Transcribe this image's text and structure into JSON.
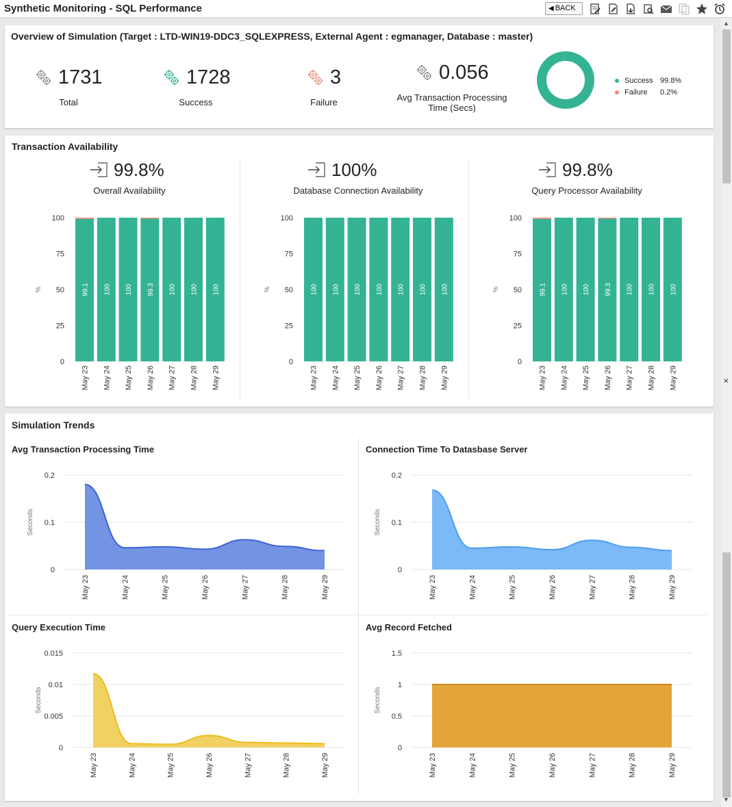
{
  "app": {
    "title": "Synthetic Monitoring - SQL Performance",
    "back_label": "BACK",
    "toolbar_icons": [
      "edit-report-icon",
      "edit-doc-icon",
      "pdf-export-icon",
      "print-preview-icon",
      "mail-icon",
      "copy-icon",
      "favorite-star-icon",
      "alarm-icon"
    ]
  },
  "overview": {
    "title": "Overview of Simulation (Target : LTD-WIN19-DDC3_SQLEXPRESS, External Agent : egmanager, Database : master)",
    "stats": [
      {
        "value": "1731",
        "label": "Total",
        "color": "#8a8a8a"
      },
      {
        "value": "1728",
        "label": "Success",
        "color": "#34b394"
      },
      {
        "value": "3",
        "label": "Failure",
        "color": "#f08a78"
      }
    ],
    "avg_value": "0.056",
    "avg_label_1": "Avg Transaction Processing",
    "avg_label_2": "Time (Secs)",
    "donut": {
      "success_pct": 99.8,
      "failure_pct": 0.2,
      "legend": [
        {
          "label": "Success",
          "value": "99.8%",
          "color": "#34b394"
        },
        {
          "label": "Failure",
          "value": "0.2%",
          "color": "#f08a78"
        }
      ]
    }
  },
  "availability": {
    "title": "Transaction Availability",
    "items": [
      {
        "value": "99.8%",
        "label": "Overall Availability"
      },
      {
        "value": "100%",
        "label": "Database Connection Availability"
      },
      {
        "value": "99.8%",
        "label": "Query Processor Availability"
      }
    ]
  },
  "trends": {
    "title": "Simulation Trends"
  },
  "chart_data": [
    {
      "type": "bar",
      "title": "",
      "categories": [
        "May 23",
        "May 24",
        "May 25",
        "May 26",
        "May 27",
        "May 28",
        "May 29"
      ],
      "values": [
        99.1,
        100,
        100,
        99.3,
        100,
        100,
        100
      ],
      "data_labels": [
        "99.1",
        "100",
        "100",
        "99.3",
        "100",
        "100",
        "100"
      ],
      "yticks": [
        "0",
        "25",
        "50",
        "75",
        "100"
      ],
      "ylabel": "%",
      "ylim": [
        0,
        100
      ],
      "color": "#34b394",
      "failure_color": "#f08a78"
    },
    {
      "type": "bar",
      "title": "",
      "categories": [
        "May 23",
        "May 24",
        "May 25",
        "May 26",
        "May 27",
        "May 28",
        "May 29"
      ],
      "values": [
        100,
        100,
        100,
        100,
        100,
        100,
        100
      ],
      "data_labels": [
        "100",
        "100",
        "100",
        "100",
        "100",
        "100",
        "100"
      ],
      "yticks": [
        "0",
        "25",
        "50",
        "75",
        "100"
      ],
      "ylabel": "%",
      "ylim": [
        0,
        100
      ],
      "color": "#34b394",
      "failure_color": "#f08a78"
    },
    {
      "type": "bar",
      "title": "",
      "categories": [
        "May 23",
        "May 24",
        "May 25",
        "May 26",
        "May 27",
        "May 28",
        "May 29"
      ],
      "values": [
        99.1,
        100,
        100,
        99.3,
        100,
        100,
        100
      ],
      "data_labels": [
        "99.1",
        "100",
        "100",
        "99.3",
        "100",
        "100",
        "100"
      ],
      "yticks": [
        "0",
        "25",
        "50",
        "75",
        "100"
      ],
      "ylabel": "%",
      "ylim": [
        0,
        100
      ],
      "color": "#34b394",
      "failure_color": "#f08a78"
    },
    {
      "type": "area",
      "title": "Avg Transaction Processing Time",
      "categories": [
        "May 23",
        "May 24",
        "May 25",
        "May 26",
        "May 27",
        "May 28",
        "May 29"
      ],
      "values": [
        0.18,
        0.046,
        0.048,
        0.043,
        0.063,
        0.049,
        0.04
      ],
      "yticks": [
        "0",
        "0.1",
        "0.2"
      ],
      "ylabel": "Seconds",
      "ylim": [
        0,
        0.2
      ],
      "fill": "#7393e3",
      "stroke": "#3d63d4"
    },
    {
      "type": "area",
      "title": "Connection Time To Datasbase Server",
      "categories": [
        "May 23",
        "May 24",
        "May 25",
        "May 26",
        "May 27",
        "May 28",
        "May 29"
      ],
      "values": [
        0.168,
        0.045,
        0.048,
        0.042,
        0.062,
        0.047,
        0.04
      ],
      "yticks": [
        "0",
        "0.1",
        "0.2"
      ],
      "ylabel": "Seconds",
      "ylim": [
        0,
        0.2
      ],
      "fill": "#7bb9f7",
      "stroke": "#4d9df0"
    },
    {
      "type": "area",
      "title": "Query Execution Time",
      "categories": [
        "May 23",
        "May 24",
        "May 25",
        "May 26",
        "May 27",
        "May 28",
        "May 29"
      ],
      "values": [
        0.0117,
        0.0006,
        0.0005,
        0.0019,
        0.0008,
        0.0007,
        0.0006
      ],
      "yticks": [
        "0",
        "0.005",
        "0.01",
        "0.015"
      ],
      "ylabel": "Seconds",
      "ylim": [
        0,
        0.015
      ],
      "fill": "#f2d163",
      "stroke": "#e8bd1c"
    },
    {
      "type": "area",
      "title": "Avg Record Fetched",
      "categories": [
        "May 23",
        "May 24",
        "May 25",
        "May 26",
        "May 27",
        "May 28",
        "May 29"
      ],
      "values": [
        1,
        1,
        1,
        1,
        1,
        1,
        1
      ],
      "yticks": [
        "0",
        "0.5",
        "1",
        "1.5"
      ],
      "ylabel": "Seconds",
      "ylim": [
        0,
        1.5
      ],
      "fill": "#e3a53a",
      "stroke": "#c98a1c"
    }
  ]
}
